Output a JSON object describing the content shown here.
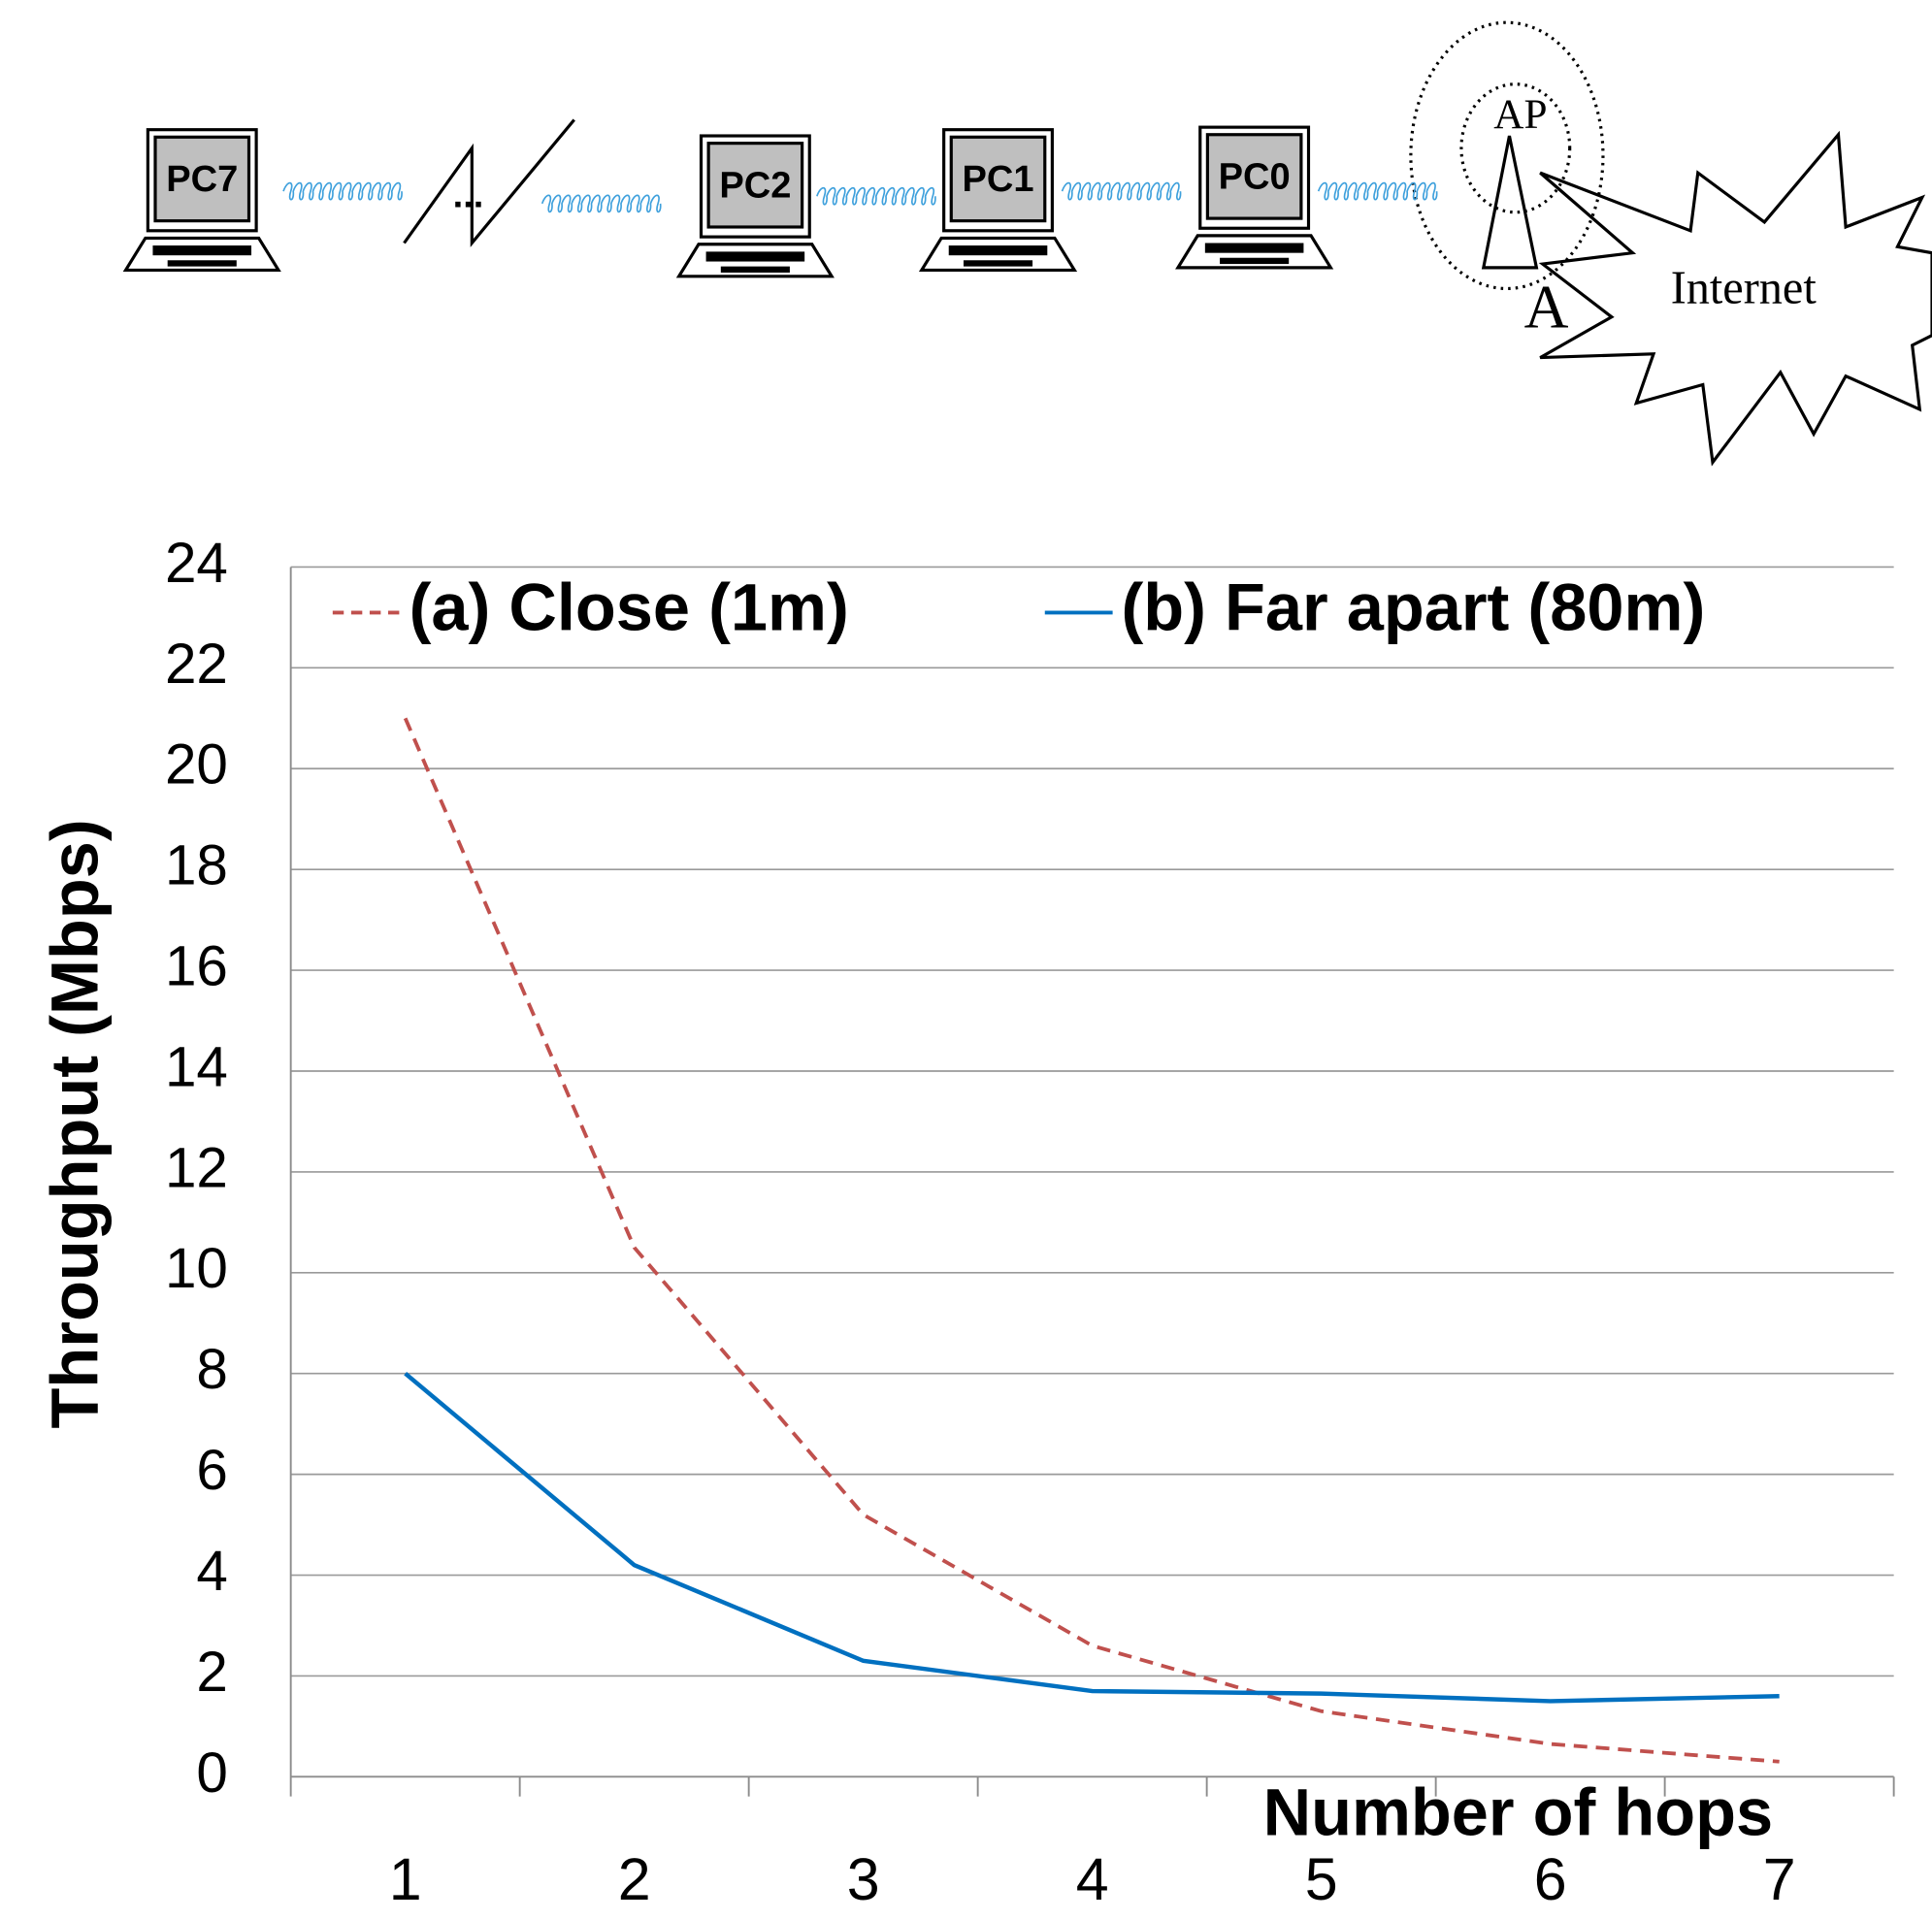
{
  "diagram": {
    "nodes": [
      {
        "label": "PC7"
      },
      {
        "label": "..."
      },
      {
        "label": "PC2"
      },
      {
        "label": "PC1"
      },
      {
        "label": "PC0"
      },
      {
        "label": "AP"
      },
      {
        "label": "A"
      },
      {
        "label": "Internet"
      }
    ]
  },
  "chart_data": {
    "type": "line",
    "x_label": "Number of hops",
    "y_label": "Throughput (Mbps)",
    "categories": [
      "1",
      "2",
      "3",
      "4",
      "5",
      "6",
      "7"
    ],
    "series": [
      {
        "name": "(a) Close (1m)",
        "color": "#c0504d",
        "style": "dashed",
        "values": [
          21,
          10.5,
          5.2,
          2.6,
          1.3,
          0.65,
          0.3
        ]
      },
      {
        "name": "(b) Far apart (80m)",
        "color": "#0070c0",
        "style": "solid",
        "values": [
          8,
          4.2,
          2.3,
          1.7,
          1.65,
          1.5,
          1.6
        ]
      }
    ],
    "ylim": [
      0,
      24
    ],
    "yticks": [
      0,
      2,
      4,
      6,
      8,
      10,
      12,
      14,
      16,
      18,
      20,
      22,
      24
    ],
    "grid": true,
    "legend": "top"
  }
}
